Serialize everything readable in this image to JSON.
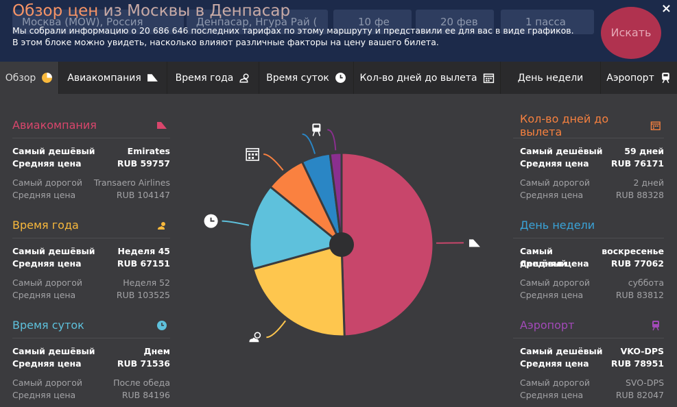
{
  "header": {
    "title_main": "Обзор цен",
    "title_sub": " из Москвы в Денпасар",
    "desc_line1": "Мы собрали информацию о 20 686 646 последних тарифах по этому маршруту и представили ее для вас в виде графиков.",
    "desc_line2": "В этом блоке можно увидеть, насколько влияют различные факторы на цену вашего билета.",
    "search": {
      "from": "Москва (MOW), Россия",
      "to": "Денпасар, Нгура Рай (",
      "date_out": "10 фе",
      "date_back": "20 фев",
      "passengers": "1 пасса",
      "button": "Искать"
    },
    "close": "×"
  },
  "tabs": [
    {
      "label": "Обзор",
      "icon": "pie-chart-icon"
    },
    {
      "label": "Авиакомпания",
      "icon": "airplane-tail-icon"
    },
    {
      "label": "Время года",
      "icon": "sun-cloud-icon"
    },
    {
      "label": "Время суток",
      "icon": "clock-icon"
    },
    {
      "label": "Кол-во дней до вылета",
      "icon": "calendar-icon"
    },
    {
      "label": "День недели",
      "icon": ""
    },
    {
      "label": "Аэропорт",
      "icon": "train-icon"
    }
  ],
  "left": [
    {
      "title": "Авиакомпания",
      "color": "#d9466c",
      "icon": "airplane-tail-icon",
      "cheap_label": "Самый дешёвый",
      "cheap_value": "Emirates",
      "avg_label": "Средняя цена",
      "cheap_avg": "RUB 59757",
      "exp_label": "Самый дорогой",
      "exp_value": "Transaero Airlines",
      "exp_avg_label": "Средняя цена",
      "exp_avg": "RUB 104147"
    },
    {
      "title": "Время года",
      "color": "#f9b93c",
      "icon": "sun-cloud-icon",
      "cheap_label": "Самый дешёвый",
      "cheap_value": "Неделя 45",
      "avg_label": "Средняя цена",
      "cheap_avg": "RUB 67151",
      "exp_label": "Самый дорогой",
      "exp_value": "Неделя 52",
      "exp_avg_label": "Средняя цена",
      "exp_avg": "RUB 103525"
    },
    {
      "title": "Время суток",
      "color": "#5ec1dc",
      "icon": "clock-icon",
      "cheap_label": "Самый дешёвый",
      "cheap_value": "Днем",
      "avg_label": "Средняя цена",
      "cheap_avg": "RUB 71536",
      "exp_label": "Самый дорогой",
      "exp_value": "После обеда",
      "exp_avg_label": "Средняя цена",
      "exp_avg": "RUB 84196"
    }
  ],
  "right": [
    {
      "title": "Кол-во дней до вылета",
      "color": "#f7813f",
      "icon": "calendar-icon",
      "cheap_label": "Самый дешёвый",
      "cheap_value": "59 дней",
      "avg_label": "Средняя цена",
      "cheap_avg": "RUB 76171",
      "exp_label": "Самый дорогой",
      "exp_value": "2 дней",
      "exp_avg_label": "Средняя цена",
      "exp_avg": "RUB 88328"
    },
    {
      "title": "День недели",
      "color": "#3aa3d8",
      "icon": "",
      "cheap_label": "Самый дешёвый",
      "cheap_value": "воскресенье",
      "avg_label": "Средняя цена",
      "cheap_avg": "RUB 77062",
      "exp_label": "Самый дорогой",
      "exp_value": "суббота",
      "exp_avg_label": "Средняя цена",
      "exp_avg": "RUB 83812"
    },
    {
      "title": "Аэропорт",
      "color": "#a24ab8",
      "icon": "train-icon",
      "cheap_label": "Самый дешёвый",
      "cheap_value": "VKO-DPS",
      "avg_label": "Средняя цена",
      "cheap_avg": "RUB 78951",
      "exp_label": "Самый дорогой",
      "exp_value": "SVO-DPS",
      "exp_avg_label": "Средняя цена",
      "exp_avg": "RUB 82047"
    }
  ],
  "chart_data": {
    "type": "pie",
    "categories": [
      "Авиакомпания",
      "Время года",
      "Время суток",
      "Кол-во дней до вылета",
      "День недели",
      "Аэропорт"
    ],
    "values": [
      49,
      21,
      15,
      7,
      5,
      2
    ],
    "colors": [
      "#c8466b",
      "#fec64e",
      "#5ec1dc",
      "#fa8140",
      "#2a86c5",
      "#8a2f8f"
    ],
    "icons": [
      "airplane-tail-icon",
      "sun-cloud-icon",
      "clock-icon",
      "calendar-icon",
      "",
      "train-icon"
    ]
  }
}
